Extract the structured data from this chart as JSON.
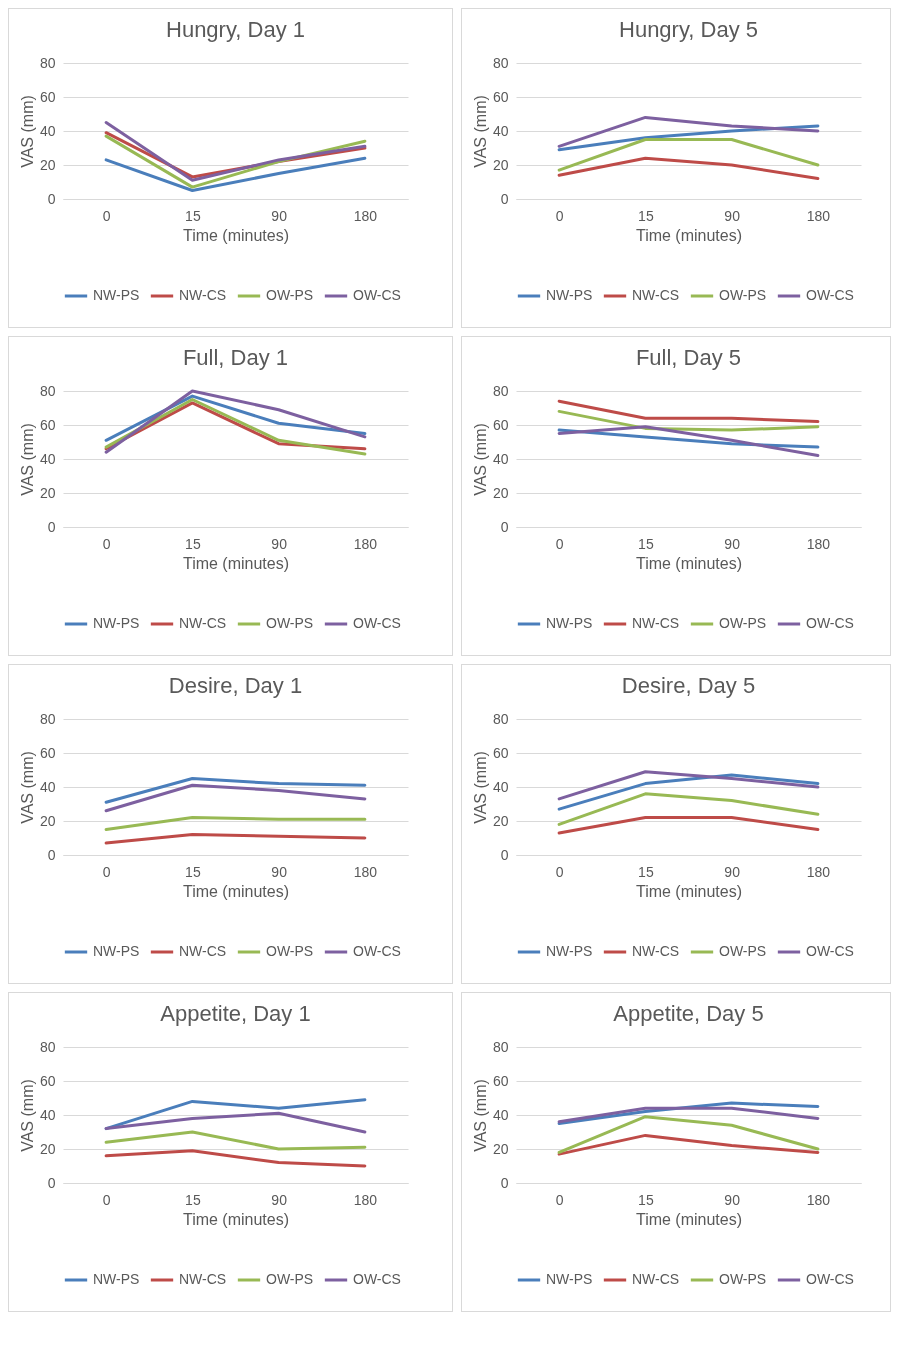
{
  "chart_data": [
    {
      "type": "line",
      "title": "Hungry, Day 1",
      "xlabel": "Time (minutes)",
      "ylabel": "VAS (mm)",
      "categories": [
        "0",
        "15",
        "90",
        "180"
      ],
      "ylim": [
        0,
        80
      ],
      "yticks": [
        0,
        20,
        40,
        60,
        80
      ],
      "grid": "y",
      "legend": "bottom",
      "series": [
        {
          "name": "NW-PS",
          "color": "#4a7ebb",
          "values": [
            23,
            5,
            15,
            24
          ]
        },
        {
          "name": "NW-CS",
          "color": "#be4b48",
          "values": [
            39,
            13,
            22,
            30
          ]
        },
        {
          "name": "OW-PS",
          "color": "#98b954",
          "values": [
            37,
            7,
            22,
            34
          ]
        },
        {
          "name": "OW-CS",
          "color": "#7d60a0",
          "values": [
            45,
            11,
            23,
            31
          ]
        }
      ]
    },
    {
      "type": "line",
      "title": "Hungry, Day 5",
      "xlabel": "Time (minutes)",
      "ylabel": "VAS (mm)",
      "categories": [
        "0",
        "15",
        "90",
        "180"
      ],
      "ylim": [
        0,
        80
      ],
      "yticks": [
        0,
        20,
        40,
        60,
        80
      ],
      "grid": "y",
      "legend": "bottom",
      "series": [
        {
          "name": "NW-PS",
          "color": "#4a7ebb",
          "values": [
            29,
            36,
            40,
            43
          ]
        },
        {
          "name": "NW-CS",
          "color": "#be4b48",
          "values": [
            14,
            24,
            20,
            12
          ]
        },
        {
          "name": "OW-PS",
          "color": "#98b954",
          "values": [
            17,
            35,
            35,
            20
          ]
        },
        {
          "name": "OW-CS",
          "color": "#7d60a0",
          "values": [
            31,
            48,
            43,
            40
          ]
        }
      ]
    },
    {
      "type": "line",
      "title": "Full, Day 1",
      "xlabel": "Time (minutes)",
      "ylabel": "VAS (mm)",
      "categories": [
        "0",
        "15",
        "90",
        "180"
      ],
      "ylim": [
        0,
        80
      ],
      "yticks": [
        0,
        20,
        40,
        60,
        80
      ],
      "grid": "y",
      "legend": "bottom",
      "series": [
        {
          "name": "NW-PS",
          "color": "#4a7ebb",
          "values": [
            51,
            77,
            61,
            55
          ]
        },
        {
          "name": "NW-CS",
          "color": "#be4b48",
          "values": [
            46,
            73,
            49,
            46
          ]
        },
        {
          "name": "OW-PS",
          "color": "#98b954",
          "values": [
            47,
            75,
            51,
            43
          ]
        },
        {
          "name": "OW-CS",
          "color": "#7d60a0",
          "values": [
            44,
            80,
            69,
            53
          ]
        }
      ]
    },
    {
      "type": "line",
      "title": "Full, Day 5",
      "xlabel": "Time (minutes)",
      "ylabel": "VAS (mm)",
      "categories": [
        "0",
        "15",
        "90",
        "180"
      ],
      "ylim": [
        0,
        80
      ],
      "yticks": [
        0,
        20,
        40,
        60,
        80
      ],
      "grid": "y",
      "legend": "bottom",
      "series": [
        {
          "name": "NW-PS",
          "color": "#4a7ebb",
          "values": [
            57,
            53,
            49,
            47
          ]
        },
        {
          "name": "NW-CS",
          "color": "#be4b48",
          "values": [
            74,
            64,
            64,
            62
          ]
        },
        {
          "name": "OW-PS",
          "color": "#98b954",
          "values": [
            68,
            58,
            57,
            59
          ]
        },
        {
          "name": "OW-CS",
          "color": "#7d60a0",
          "values": [
            55,
            59,
            51,
            42
          ]
        }
      ]
    },
    {
      "type": "line",
      "title": "Desire, Day 1",
      "xlabel": "Time (minutes)",
      "ylabel": "VAS (mm)",
      "categories": [
        "0",
        "15",
        "90",
        "180"
      ],
      "ylim": [
        0,
        80
      ],
      "yticks": [
        0,
        20,
        40,
        60,
        80
      ],
      "grid": "y",
      "legend": "bottom",
      "series": [
        {
          "name": "NW-PS",
          "color": "#4a7ebb",
          "values": [
            31,
            45,
            42,
            41
          ]
        },
        {
          "name": "NW-CS",
          "color": "#be4b48",
          "values": [
            7,
            12,
            11,
            10
          ]
        },
        {
          "name": "OW-PS",
          "color": "#98b954",
          "values": [
            15,
            22,
            21,
            21
          ]
        },
        {
          "name": "OW-CS",
          "color": "#7d60a0",
          "values": [
            26,
            41,
            38,
            33
          ]
        }
      ]
    },
    {
      "type": "line",
      "title": "Desire, Day 5",
      "xlabel": "Time (minutes)",
      "ylabel": "VAS (mm)",
      "categories": [
        "0",
        "15",
        "90",
        "180"
      ],
      "ylim": [
        0,
        80
      ],
      "yticks": [
        0,
        20,
        40,
        60,
        80
      ],
      "grid": "y",
      "legend": "bottom",
      "series": [
        {
          "name": "NW-PS",
          "color": "#4a7ebb",
          "values": [
            27,
            42,
            47,
            42
          ]
        },
        {
          "name": "NW-CS",
          "color": "#be4b48",
          "values": [
            13,
            22,
            22,
            15
          ]
        },
        {
          "name": "OW-PS",
          "color": "#98b954",
          "values": [
            18,
            36,
            32,
            24
          ]
        },
        {
          "name": "OW-CS",
          "color": "#7d60a0",
          "values": [
            33,
            49,
            45,
            40
          ]
        }
      ]
    },
    {
      "type": "line",
      "title": "Appetite, Day 1",
      "xlabel": "Time (minutes)",
      "ylabel": "VAS (mm)",
      "categories": [
        "0",
        "15",
        "90",
        "180"
      ],
      "ylim": [
        0,
        80
      ],
      "yticks": [
        0,
        20,
        40,
        60,
        80
      ],
      "grid": "y",
      "legend": "bottom",
      "series": [
        {
          "name": "NW-PS",
          "color": "#4a7ebb",
          "values": [
            32,
            48,
            44,
            49
          ]
        },
        {
          "name": "NW-CS",
          "color": "#be4b48",
          "values": [
            16,
            19,
            12,
            10
          ]
        },
        {
          "name": "OW-PS",
          "color": "#98b954",
          "values": [
            24,
            30,
            20,
            21
          ]
        },
        {
          "name": "OW-CS",
          "color": "#7d60a0",
          "values": [
            32,
            38,
            41,
            30
          ]
        }
      ]
    },
    {
      "type": "line",
      "title": "Appetite, Day 5",
      "xlabel": "Time (minutes)",
      "ylabel": "VAS (mm)",
      "categories": [
        "0",
        "15",
        "90",
        "180"
      ],
      "ylim": [
        0,
        80
      ],
      "yticks": [
        0,
        20,
        40,
        60,
        80
      ],
      "grid": "y",
      "legend": "bottom",
      "series": [
        {
          "name": "NW-PS",
          "color": "#4a7ebb",
          "values": [
            35,
            42,
            47,
            45
          ]
        },
        {
          "name": "NW-CS",
          "color": "#be4b48",
          "values": [
            17,
            28,
            22,
            18
          ]
        },
        {
          "name": "OW-PS",
          "color": "#98b954",
          "values": [
            18,
            39,
            34,
            20
          ]
        },
        {
          "name": "OW-CS",
          "color": "#7d60a0",
          "values": [
            36,
            44,
            44,
            38
          ]
        }
      ]
    }
  ]
}
